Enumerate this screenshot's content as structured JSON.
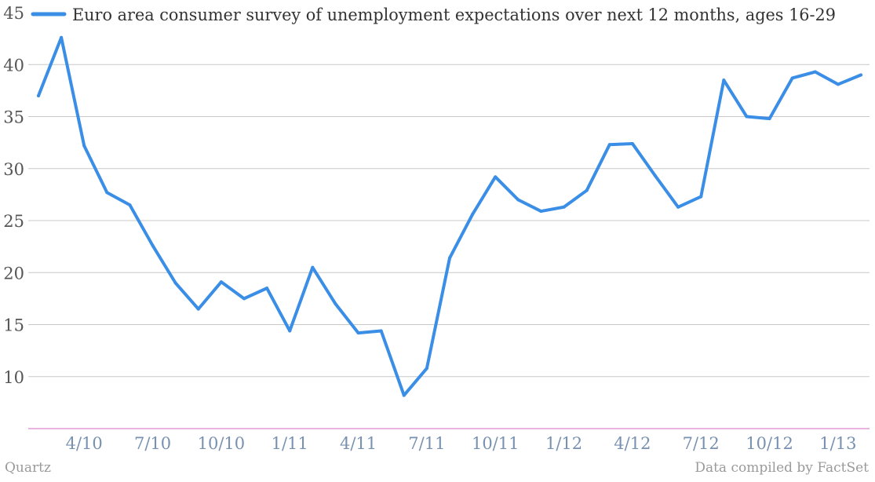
{
  "chart_data": {
    "type": "line",
    "legend": {
      "label": "Euro area consumer survey of unemployment expectations over next 12 months, ages 16-29",
      "placement": "top-left"
    },
    "ylim": [
      5,
      45
    ],
    "yticks": [
      10,
      15,
      20,
      25,
      30,
      35,
      40,
      45
    ],
    "xtick_labels": [
      "4/10",
      "7/10",
      "10/10",
      "1/11",
      "4/11",
      "7/11",
      "10/11",
      "1/12",
      "4/12",
      "7/12",
      "10/12",
      "1/13"
    ],
    "grid": true,
    "series": [
      {
        "name": "Euro area consumer survey of unemployment expectations over next 12 months, ages 16-29",
        "color": "#3a8ee6",
        "values": [
          37.0,
          42.6,
          32.2,
          27.7,
          26.5,
          22.6,
          19.0,
          16.5,
          19.1,
          17.5,
          18.5,
          14.4,
          20.5,
          17.0,
          14.2,
          14.4,
          8.2,
          10.8,
          21.4,
          25.6,
          29.2,
          27.0,
          25.9,
          26.3,
          27.9,
          32.3,
          32.4,
          29.3,
          26.3,
          27.3,
          38.5,
          35.0,
          34.8,
          38.7,
          39.3,
          38.1,
          39.0
        ]
      }
    ]
  },
  "colors": {
    "line": "#3a8ee6",
    "grid": "#c8c8c8",
    "axis_baseline": "#d36ac2",
    "y_tick_text": "#555555",
    "x_tick_text": "#7891b0"
  },
  "footer": {
    "source_left": "Quartz",
    "source_right": "Data compiled by FactSet"
  }
}
